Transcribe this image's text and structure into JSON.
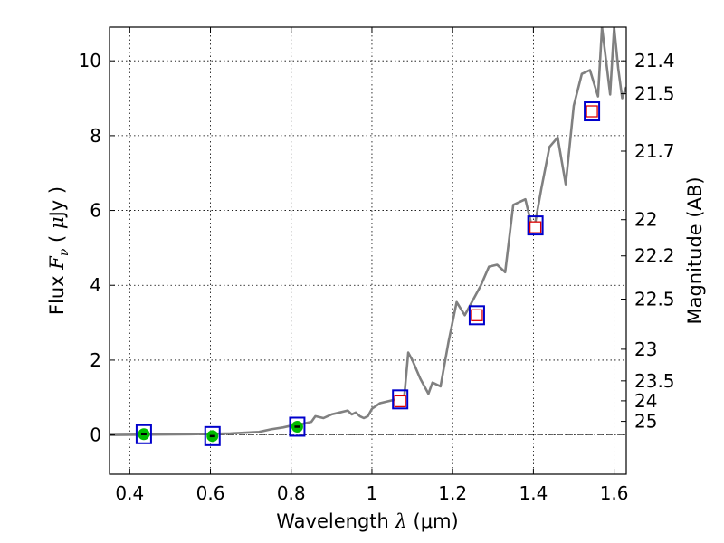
{
  "chart_data": {
    "type": "scatter",
    "xlabel": "Wavelength  λ (μm)",
    "xlabel_parts": {
      "text": "Wavelength",
      "symbol": "λ",
      "unit": "(μm)"
    },
    "ylabel": "Flux  Fν  ( μJy )",
    "ylabel_parts": {
      "text": "Flux",
      "symbol": "F",
      "subscript": "ν",
      "unit_open": "(",
      "unit_mu": "μ",
      "unit": "Jy",
      "unit_close": ")"
    },
    "ylabel_right": "Magnitude (AB)",
    "xlim": [
      0.35,
      1.63
    ],
    "ylim": [
      -1.05,
      10.9
    ],
    "grid": true,
    "x_ticks": [
      0.4,
      0.6,
      0.8,
      1.0,
      1.2,
      1.4,
      1.6
    ],
    "x_tick_labels": [
      "0.4",
      "0.6",
      "0.8",
      "1",
      "1.2",
      "1.4",
      "1.6"
    ],
    "y_ticks": [
      0,
      2,
      4,
      6,
      8,
      10
    ],
    "y_tick_labels": [
      "0",
      "2",
      "4",
      "6",
      "8",
      "10"
    ],
    "mag_ticks": [
      21.4,
      21.5,
      21.7,
      22,
      22.2,
      22.5,
      23,
      23.5,
      24,
      25
    ],
    "mag_tick_labels": [
      "21.4",
      "21.5",
      "21.7",
      "22",
      "22.2",
      "22.5",
      "23",
      "23.5",
      "24",
      "25"
    ],
    "colors": {
      "model": "#808080",
      "observed_box": "#0000cc",
      "model_box": "#dd0000",
      "detection": "#00bb00"
    },
    "series": [
      {
        "type": "line",
        "x": [
          0.35,
          0.45,
          0.55,
          0.65,
          0.72,
          0.75,
          0.78,
          0.8,
          0.83,
          0.85,
          0.86,
          0.88,
          0.9,
          0.92,
          0.94,
          0.95,
          0.96,
          0.97,
          0.98,
          0.99,
          1.0,
          1.02,
          1.04,
          1.06,
          1.08,
          1.09,
          1.1,
          1.12,
          1.14,
          1.15,
          1.17,
          1.19,
          1.21,
          1.23,
          1.25,
          1.27,
          1.29,
          1.31,
          1.33,
          1.35,
          1.36,
          1.38,
          1.4,
          1.42,
          1.44,
          1.46,
          1.48,
          1.5,
          1.52,
          1.54,
          1.56,
          1.57,
          1.58,
          1.59,
          1.6,
          1.61,
          1.62,
          1.63
        ],
        "y": [
          0,
          0.01,
          0.02,
          0.04,
          0.08,
          0.15,
          0.2,
          0.25,
          0.3,
          0.35,
          0.5,
          0.45,
          0.55,
          0.6,
          0.65,
          0.55,
          0.6,
          0.5,
          0.45,
          0.5,
          0.7,
          0.85,
          0.9,
          0.95,
          1.0,
          2.2,
          2.0,
          1.5,
          1.1,
          1.4,
          1.3,
          2.5,
          3.55,
          3.2,
          3.6,
          4.0,
          4.5,
          4.55,
          4.35,
          6.15,
          6.2,
          6.3,
          5.4,
          6.6,
          7.7,
          7.95,
          6.7,
          8.8,
          9.65,
          9.75,
          9.05,
          10.9,
          10.0,
          9.1,
          10.9,
          9.8,
          9.0,
          9.3
        ]
      },
      {
        "type": "scatter",
        "marker": "blue-square",
        "x": [
          0.435,
          0.605,
          0.815,
          1.07,
          1.26,
          1.405,
          1.545
        ],
        "y": [
          0.02,
          -0.03,
          0.22,
          0.95,
          3.2,
          5.6,
          8.65
        ]
      },
      {
        "type": "scatter",
        "marker": "red-square",
        "x": [
          1.07,
          1.26,
          1.405,
          1.545
        ],
        "y": [
          0.9,
          3.2,
          5.55,
          8.65
        ]
      },
      {
        "type": "scatter",
        "marker": "green-circle",
        "x": [
          0.435,
          0.605,
          0.815
        ],
        "y": [
          0.02,
          -0.03,
          0.22
        ]
      }
    ]
  }
}
